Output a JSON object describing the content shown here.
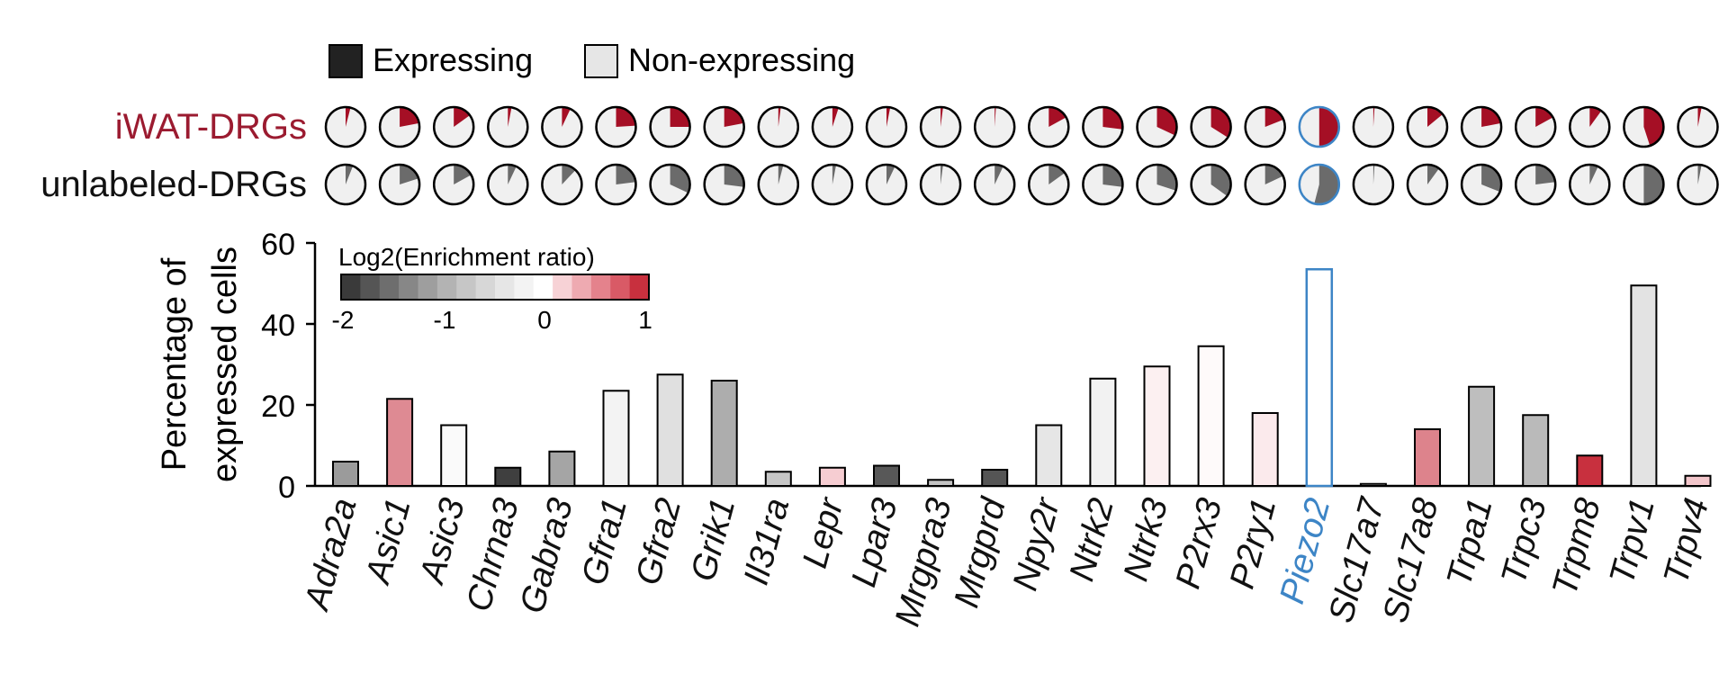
{
  "legend": {
    "expressing_label": "Expressing",
    "nonexpressing_label": "Non-expressing",
    "expressing_color": "#222222",
    "nonexpressing_color": "#e6e6e6"
  },
  "row_labels": {
    "iwat": "iWAT-DRGs",
    "unlabeled": "unlabeled-DRGs",
    "iwat_color": "#9b1b30",
    "unlabeled_color": "#111111"
  },
  "pie_colors": {
    "iwat_fill": "#a50f25",
    "unlabeled_fill": "#6b6b6b",
    "background": "#f0f0f0",
    "highlight_ring": "#3d85c6"
  },
  "colorbar": {
    "title": "Log2(Enrichment ratio)",
    "ticks": [
      "-2",
      "-1",
      "0",
      "1"
    ],
    "swatches": [
      "#3a3a3a",
      "#555555",
      "#6e6e6e",
      "#878787",
      "#9e9e9e",
      "#b3b3b3",
      "#c6c6c6",
      "#d7d7d7",
      "#e6e6e6",
      "#f3f3f3",
      "#ffffff",
      "#f7d2d6",
      "#eeaab1",
      "#e4828c",
      "#d95a66",
      "#c8303e"
    ]
  },
  "highlight_color": "#3d85c6",
  "chart_data": {
    "type": "bar",
    "ylabel_line1": "Percentage of",
    "ylabel_line2": "expressed cells",
    "ylim": [
      0,
      60
    ],
    "yticks": [
      "0",
      "20",
      "40",
      "60"
    ],
    "highlight": "Piezo2",
    "categories": [
      "Adra2a",
      "Asic1",
      "Asic3",
      "Chrna3",
      "Gabra3",
      "Gfra1",
      "Gfra2",
      "Grik1",
      "Il31ra",
      "Lepr",
      "Lpar3",
      "Mrgpra3",
      "Mrgprd",
      "Npy2r",
      "Ntrk2",
      "Ntrk3",
      "P2rx3",
      "P2ry1",
      "Piezo2",
      "Slc17a7",
      "Slc17a8",
      "Trpa1",
      "Trpc3",
      "Trpm8",
      "Trpv1",
      "Trpv4"
    ],
    "values": [
      6,
      21.5,
      15,
      4.5,
      8.5,
      23.5,
      27.5,
      26,
      3.5,
      4.5,
      5,
      1.5,
      4,
      15,
      26.5,
      29.5,
      34.5,
      18,
      53.5,
      0.5,
      14,
      24.5,
      17.5,
      7.5,
      49.5,
      2.5
    ],
    "bar_colors": [
      "#9b9b9b",
      "#de8a93",
      "#fafafa",
      "#3f3f3f",
      "#a5a5a5",
      "#f3f3f3",
      "#e0e0e0",
      "#adadad",
      "#c6c6c6",
      "#f6cdd2",
      "#585858",
      "#c2c2c2",
      "#555555",
      "#e6e6e6",
      "#f2f2f2",
      "#fcf0f1",
      "#fefafa",
      "#fbeaec",
      "#ffffff",
      "#f4f4f4",
      "#dd838c",
      "#bebebe",
      "#bababa",
      "#c8303e",
      "#e3e3e3",
      "#f3c6cb"
    ],
    "iwat_fraction": [
      0.04,
      0.22,
      0.15,
      0.03,
      0.07,
      0.24,
      0.25,
      0.22,
      0.02,
      0.05,
      0.03,
      0.02,
      0.01,
      0.17,
      0.27,
      0.32,
      0.34,
      0.19,
      0.5,
      0.01,
      0.14,
      0.22,
      0.17,
      0.1,
      0.45,
      0.03
    ],
    "unlabeled_fraction": [
      0.06,
      0.2,
      0.17,
      0.07,
      0.12,
      0.23,
      0.32,
      0.27,
      0.04,
      0.03,
      0.07,
      0.02,
      0.07,
      0.15,
      0.27,
      0.3,
      0.35,
      0.18,
      0.54,
      0.01,
      0.1,
      0.31,
      0.23,
      0.07,
      0.5,
      0.03
    ]
  }
}
